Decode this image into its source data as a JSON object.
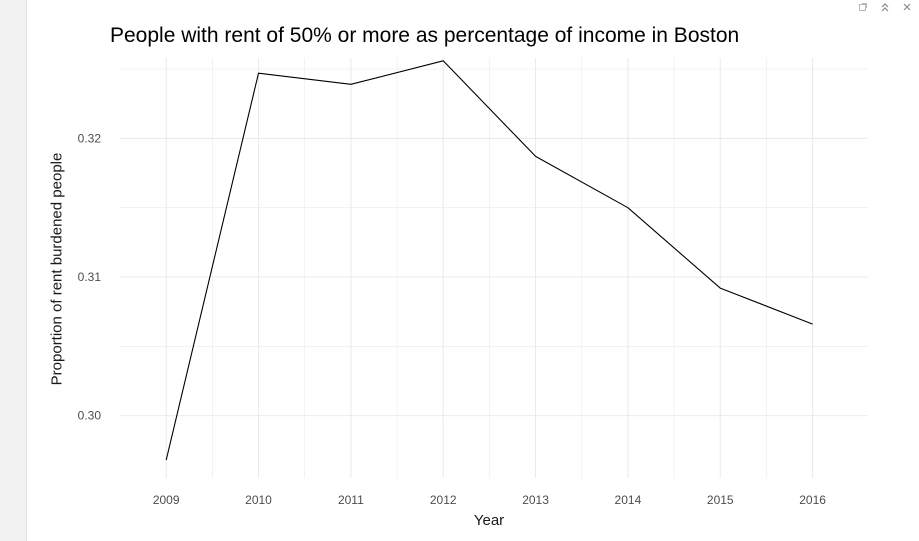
{
  "window": {
    "controls": [
      {
        "name": "popout-icon",
        "glyph": "popout"
      },
      {
        "name": "collapse-icon",
        "glyph": "collapse"
      },
      {
        "name": "close-icon",
        "glyph": "close"
      }
    ]
  },
  "chart_data": {
    "type": "line",
    "title": "People with rent of 50% or more as percentage of income in Boston",
    "xlabel": "Year",
    "ylabel": "Proportion of rent burdened people",
    "x": [
      2009,
      2010,
      2011,
      2012,
      2013,
      2014,
      2015,
      2016
    ],
    "x_tick_labels": [
      "2009",
      "2010",
      "2011",
      "2012",
      "2013",
      "2014",
      "2015",
      "2016"
    ],
    "series": [
      {
        "values": [
          0.2968,
          0.3247,
          0.3239,
          0.3256,
          0.3187,
          0.315,
          0.3092,
          0.3066
        ],
        "color": "#000000"
      }
    ],
    "y_ticks": [
      0.3,
      0.31,
      0.32
    ],
    "y_tick_labels": [
      "0.30",
      "0.31",
      "0.32"
    ],
    "ylim": [
      0.2955,
      0.3258
    ],
    "xlim": [
      2008.5,
      2016.6
    ],
    "grid": true,
    "grid_color": "#ebebeb",
    "legend": "none"
  }
}
